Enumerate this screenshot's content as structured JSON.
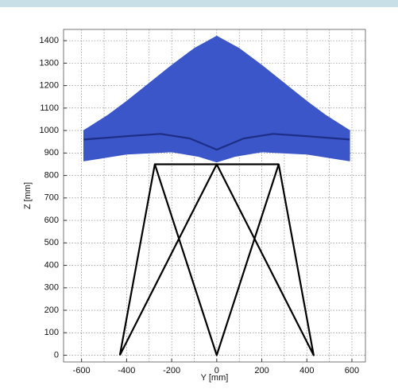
{
  "chart_data": {
    "type": "line",
    "xlabel": "Y [mm]",
    "ylabel": "Z [mm]",
    "xlim": [
      -680,
      660
    ],
    "ylim": [
      -30,
      1450
    ],
    "xticks": [
      -600,
      -400,
      -200,
      0,
      200,
      400,
      600
    ],
    "xgrid": [
      -600,
      -500,
      -400,
      -300,
      -200,
      -100,
      0,
      100,
      200,
      300,
      400,
      500,
      600
    ],
    "yticks": [
      0,
      100,
      200,
      300,
      400,
      500,
      600,
      700,
      800,
      900,
      1000,
      1100,
      1200,
      1300,
      1400
    ],
    "grid": true,
    "series": [
      {
        "color": "#3b56c8",
        "fill": true,
        "x": [
          -590,
          -590,
          -480,
          -400,
          -300,
          -200,
          -100,
          0,
          100,
          200,
          300,
          400,
          480,
          590,
          590,
          400,
          200,
          80,
          0,
          -80,
          -200,
          -400
        ],
        "values": [
          865,
          1000,
          1070,
          1130,
          1210,
          1290,
          1365,
          1420,
          1365,
          1290,
          1210,
          1130,
          1070,
          1000,
          865,
          895,
          905,
          885,
          860,
          885,
          905,
          895
        ]
      },
      {
        "color": "#1e2d86",
        "x": [
          -590,
          -400,
          -250,
          -120,
          0,
          120,
          250,
          400,
          590
        ],
        "values": [
          960,
          975,
          985,
          965,
          915,
          965,
          985,
          975,
          960
        ]
      },
      {
        "color": "#000000",
        "x": [
          -430,
          -275,
          0,
          275,
          430,
          0,
          -430,
          null,
          -275,
          275
        ],
        "values": [
          0,
          850,
          0,
          850,
          0,
          850,
          0,
          null,
          850,
          850
        ]
      }
    ]
  }
}
